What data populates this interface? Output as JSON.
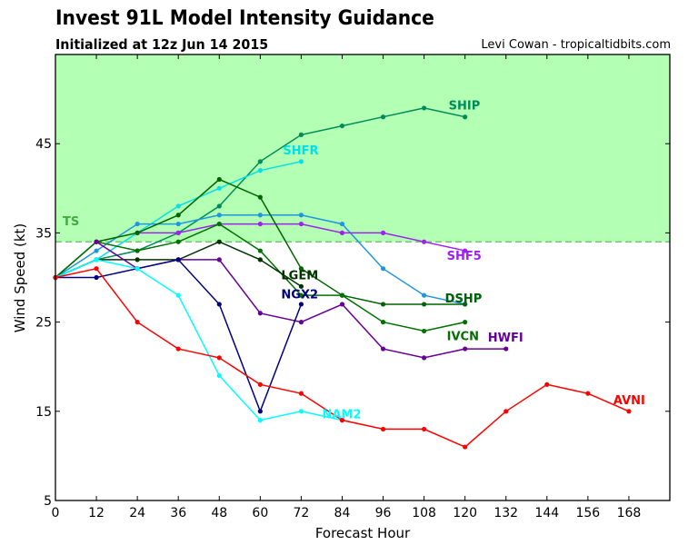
{
  "header": {
    "title": "Invest 91L Model Intensity Guidance",
    "subtitle": "Initialized at 12z Jun 14 2015",
    "credit": "Levi Cowan - tropicaltidbits.com"
  },
  "chart_data": {
    "type": "line",
    "title": "Invest 91L Model Intensity Guidance",
    "subtitle": "Initialized at 12z Jun 14 2015",
    "xlabel": "Forecast Hour",
    "ylabel": "Wind Speed (kt)",
    "xlim": [
      0,
      180
    ],
    "ylim": [
      5,
      55
    ],
    "xticks": [
      0,
      12,
      24,
      36,
      48,
      60,
      72,
      84,
      96,
      108,
      120,
      132,
      144,
      156,
      168
    ],
    "yticks": [
      5,
      15,
      25,
      35,
      45
    ],
    "grid": false,
    "threshold": {
      "label": "TS",
      "value": 34,
      "fill_color": "#b3ffb3",
      "line_color": "#66bb66",
      "label_color": "#44aa44"
    },
    "series": [
      {
        "name": "SHIP",
        "color": "#008b5a",
        "x": [
          0,
          12,
          24,
          36,
          48,
          60,
          72,
          84,
          96,
          108,
          120
        ],
        "values": [
          30,
          32,
          33,
          35,
          38,
          43,
          46,
          47,
          48,
          49,
          48
        ]
      },
      {
        "name": "SHFR",
        "color": "#00e0e8",
        "x": [
          0,
          12,
          24,
          36,
          48,
          60,
          72
        ],
        "values": [
          30,
          32,
          35,
          38,
          40,
          42,
          43
        ]
      },
      {
        "name": "DSHP",
        "color": "#1e96e0",
        "x": [
          0,
          12,
          24,
          36,
          48,
          60,
          72,
          84,
          96,
          108,
          120
        ],
        "values": [
          30,
          33,
          36,
          36,
          37,
          37,
          37,
          36,
          31,
          28,
          27
        ]
      },
      {
        "name": "SHF5",
        "color": "#a020f0",
        "x": [
          24,
          36,
          48,
          60,
          72,
          84,
          96,
          108,
          120
        ],
        "values": [
          35,
          35,
          36,
          36,
          36,
          35,
          35,
          34,
          33
        ]
      },
      {
        "name": "DSHP",
        "color": "#006400",
        "x": [
          0,
          12,
          24,
          36,
          48,
          60,
          72,
          84,
          96,
          108,
          120
        ],
        "values": [
          30,
          34,
          35,
          37,
          41,
          39,
          31,
          28,
          27,
          27,
          27
        ]
      },
      {
        "name": "IVCN",
        "color": "#007000",
        "x": [
          0,
          12,
          24,
          36,
          48,
          60,
          72,
          84,
          96,
          108,
          120
        ],
        "values": [
          30,
          34,
          33,
          34,
          36,
          33,
          28,
          28,
          25,
          24,
          25
        ]
      },
      {
        "name": "LGEM",
        "color": "#003300",
        "x": [
          0,
          12,
          24,
          36,
          48,
          60,
          72
        ],
        "values": [
          30,
          32,
          32,
          32,
          34,
          32,
          29
        ]
      },
      {
        "name": "HWFI",
        "color": "#660099",
        "x": [
          12,
          24,
          36,
          48,
          60,
          72,
          84,
          96,
          108,
          120,
          132
        ],
        "values": [
          34,
          31,
          32,
          32,
          26,
          25,
          27,
          22,
          21,
          22,
          22
        ]
      },
      {
        "name": "NGX2",
        "color": "#000080",
        "x": [
          0,
          12,
          24,
          36,
          48,
          60,
          72
        ],
        "values": [
          30,
          30,
          31,
          32,
          27,
          15,
          27
        ]
      },
      {
        "name": "NAM2",
        "color": "#00ffff",
        "x": [
          0,
          12,
          24,
          36,
          48,
          60,
          72,
          84
        ],
        "values": [
          30,
          32,
          31,
          28,
          19,
          14,
          15,
          14
        ]
      },
      {
        "name": "AVNI",
        "color": "#ff0000",
        "x": [
          0,
          12,
          24,
          36,
          48,
          60,
          72,
          84,
          96,
          108,
          120,
          132,
          144,
          156,
          168
        ],
        "values": [
          30,
          31,
          25,
          22,
          21,
          18,
          17,
          14,
          13,
          13,
          11,
          15,
          18,
          17,
          15
        ]
      }
    ]
  }
}
